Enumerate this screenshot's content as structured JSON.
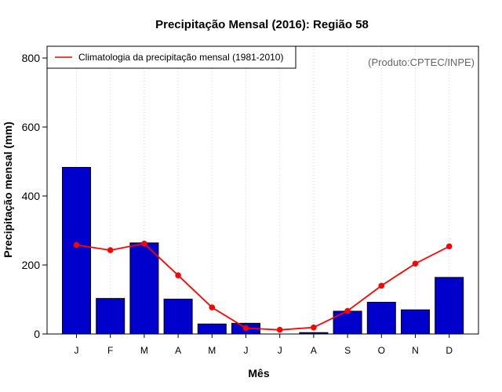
{
  "chart_data": {
    "type": "bar",
    "title": "Precipitação Mensal (2016): Região 58",
    "xlabel": "Mês",
    "ylabel": "Precipitação mensal (mm)",
    "ylim": [
      0,
      800
    ],
    "yticks": [
      0,
      200,
      400,
      600,
      800
    ],
    "grid": "vertical dotted",
    "categories": [
      "J",
      "F",
      "M",
      "A",
      "M",
      "J",
      "J",
      "A",
      "S",
      "O",
      "N",
      "D"
    ],
    "series": [
      {
        "name": "Precipitação mensal (2016)",
        "type": "bar",
        "color": "#0000cc",
        "values": [
          483,
          103,
          264,
          101,
          29,
          31,
          0,
          4,
          66,
          92,
          70,
          164
        ]
      },
      {
        "name": "Climatologia da precipitação mensal (1981-2010)",
        "type": "line",
        "color": "#ff0000",
        "values": [
          258,
          243,
          262,
          170,
          77,
          17,
          12,
          19,
          67,
          140,
          204,
          254
        ]
      }
    ],
    "legend": {
      "position": "top-left",
      "entries": [
        "Climatologia da precipitação mensal (1981-2010)"
      ]
    },
    "annotation": "(Produto:CPTEC/INPE)"
  }
}
